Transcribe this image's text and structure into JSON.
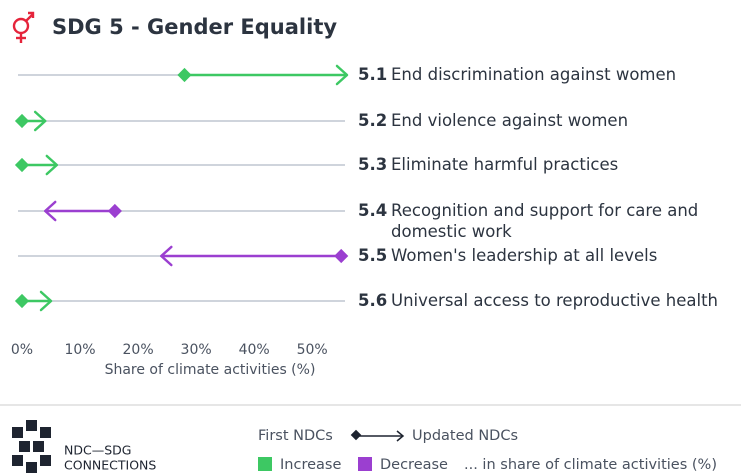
{
  "chart_data": {
    "type": "arrow",
    "title": "SDG 5 - Gender Equality",
    "codes": [
      "5.1",
      "5.2",
      "5.3",
      "5.4",
      "5.5",
      "5.6"
    ],
    "categories": [
      "End discrimination against women",
      "End violence against women",
      "Eliminate harmful practices",
      "Recognition and support for care and domestic work",
      "Women's leadership at all levels",
      "Universal access to reproductive health"
    ],
    "first": [
      28,
      0,
      0,
      16,
      55,
      0
    ],
    "updated": [
      56,
      4,
      6,
      4,
      24,
      5
    ],
    "xlim": [
      0,
      56
    ],
    "xticks": [
      {
        "value": 0,
        "label": "0%"
      },
      {
        "value": 10,
        "label": "10%"
      },
      {
        "value": 20,
        "label": "20%"
      },
      {
        "value": 30,
        "label": "30%"
      },
      {
        "value": 40,
        "label": "40%"
      },
      {
        "value": 50,
        "label": "50%"
      }
    ],
    "xlabel": "Share of climate activities (%)",
    "legend": {
      "first": "First NDCs",
      "updated": "Updated NDCs",
      "increase": {
        "name": "Increase",
        "color": "#3dc863"
      },
      "decrease": {
        "name": "Decrease",
        "color": "#9b3fd0"
      },
      "note": "... in share of climate activities (%)"
    },
    "brand": [
      "NDC—SDG",
      "CONNECTIONS"
    ]
  }
}
